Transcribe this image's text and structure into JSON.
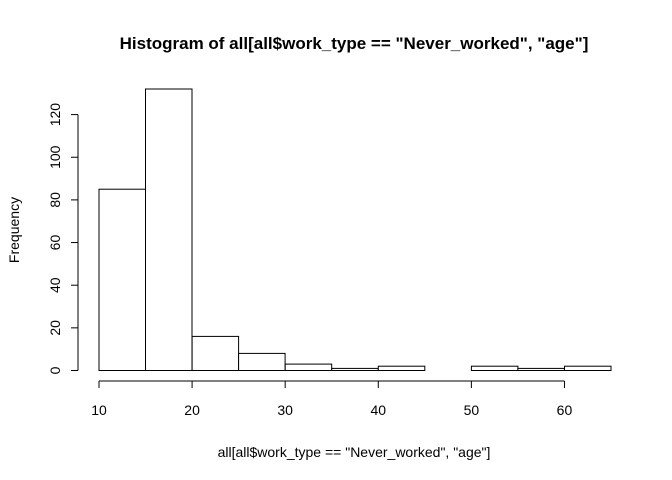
{
  "chart_data": {
    "type": "bar",
    "title": "Histogram of all[all$work_type == \"Never_worked\", \"age\"]",
    "xlabel": "all[all$work_type == \"Never_worked\", \"age\"]",
    "ylabel": "Frequency",
    "bins": [
      {
        "x0": 10,
        "x1": 15,
        "count": 85
      },
      {
        "x0": 15,
        "x1": 20,
        "count": 132
      },
      {
        "x0": 20,
        "x1": 25,
        "count": 16
      },
      {
        "x0": 25,
        "x1": 30,
        "count": 8
      },
      {
        "x0": 30,
        "x1": 35,
        "count": 3
      },
      {
        "x0": 35,
        "x1": 40,
        "count": 1
      },
      {
        "x0": 40,
        "x1": 45,
        "count": 2
      },
      {
        "x0": 45,
        "x1": 50,
        "count": 0
      },
      {
        "x0": 50,
        "x1": 55,
        "count": 2
      },
      {
        "x0": 55,
        "x1": 60,
        "count": 1
      },
      {
        "x0": 60,
        "x1": 65,
        "count": 2
      }
    ],
    "xticks": [
      10,
      20,
      30,
      40,
      50,
      60
    ],
    "yticks": [
      0,
      20,
      40,
      60,
      80,
      100,
      120
    ],
    "xlim": [
      10,
      65
    ],
    "ylim": [
      0,
      132
    ],
    "grid": false,
    "legend": "none"
  }
}
